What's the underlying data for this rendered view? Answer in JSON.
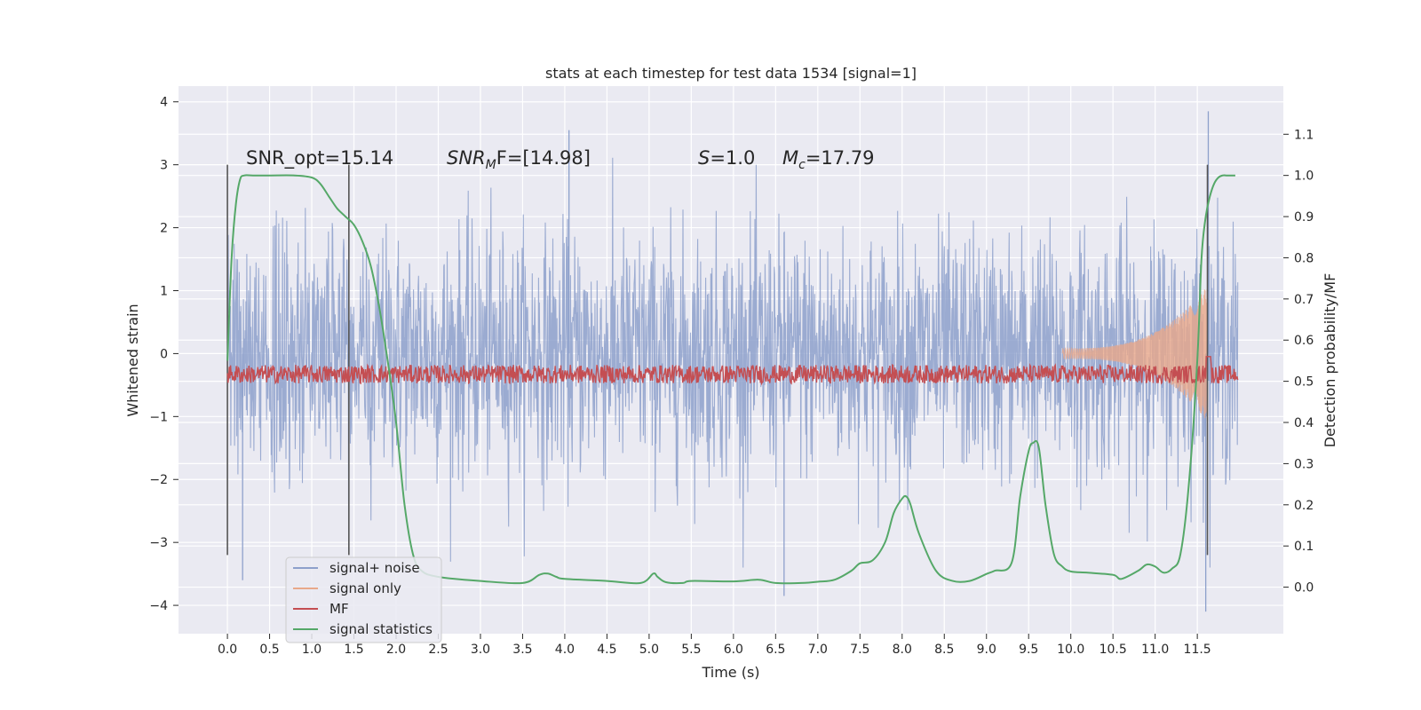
{
  "chart_data": {
    "type": "line",
    "title": "stats at each timestep for test data 1534 [signal=1]",
    "xlabel": "Time (s)",
    "ylabel": "Whitened strain",
    "y2label": "Detection probability/MF",
    "xlim": [
      -0.58,
      12.52
    ],
    "ylim": [
      -4.45,
      4.25
    ],
    "y2lim": [
      -0.113,
      1.217
    ],
    "grid": true,
    "x_ticks": [
      0.0,
      0.5,
      1.0,
      1.5,
      2.0,
      2.5,
      3.0,
      3.5,
      4.0,
      4.5,
      5.0,
      5.5,
      6.0,
      6.5,
      7.0,
      7.5,
      8.0,
      8.5,
      9.0,
      9.5,
      10.0,
      10.5,
      11.0,
      11.5
    ],
    "x_tick_labels": [
      "0.0",
      "0.5",
      "1.0",
      "1.5",
      "2.0",
      "2.5",
      "3.0",
      "3.5",
      "4.0",
      "4.5",
      "5.0",
      "5.5",
      "6.0",
      "6.5",
      "7.0",
      "7.5",
      "8.0",
      "8.5",
      "9.0",
      "9.5",
      "10.0",
      "10.5",
      "11.0",
      "11.5"
    ],
    "y_ticks": [
      -4,
      -3,
      -2,
      -1,
      0,
      1,
      2,
      3,
      4
    ],
    "y_tick_labels": [
      "−4",
      "−3",
      "−2",
      "−1",
      "0",
      "1",
      "2",
      "3",
      "4"
    ],
    "y2_ticks": [
      0.0,
      0.1,
      0.2,
      0.3,
      0.4,
      0.5,
      0.6,
      0.7,
      0.8,
      0.9,
      1.0,
      1.1
    ],
    "y2_tick_labels": [
      "0.0",
      "0.1",
      "0.2",
      "0.3",
      "0.4",
      "0.5",
      "0.6",
      "0.7",
      "0.8",
      "0.9",
      "1.0",
      "1.1"
    ],
    "annotations": {
      "snr_opt": "SNR_opt=15.14",
      "snr_mf_label": "SNR",
      "snr_mf_sub": "M",
      "snr_mf_rest": "F=[14.98]",
      "s_label": "S",
      "s_value": "=1.0",
      "mc_label": "M",
      "mc_sub": "c",
      "mc_value": "=17.79"
    },
    "vertical_markers": [
      0.0,
      1.44,
      11.62
    ],
    "vertical_marker_range": [
      -3.2,
      3.0
    ],
    "legend": {
      "placement": "lower-left",
      "entries": [
        "signal+ noise",
        "signal only",
        "MF",
        "signal statistics"
      ]
    },
    "colors": {
      "noise": "#8da0cb",
      "signal": "#e8a88a",
      "mf": "#c44e52",
      "stats": "#55a868",
      "axes_bg": "#eaeaf2",
      "marker": "#555555"
    },
    "series": [
      {
        "name": "signal+ noise",
        "axis": "left",
        "t_start": 0.0,
        "t_end": 11.98,
        "typical_amplitude": 1.8,
        "note_peaks": [
          [
            0.18,
            -3.6
          ],
          [
            4.05,
            3.55
          ],
          [
            6.6,
            -3.85
          ],
          [
            11.6,
            -4.1
          ],
          [
            11.63,
            3.85
          ]
        ]
      },
      {
        "name": "signal only",
        "axis": "left",
        "chirp_start": 9.9,
        "chirp_end": 11.62,
        "peak_amplitude": 1.0
      },
      {
        "name": "MF",
        "axis": "right",
        "baseline": 0.515,
        "noise_range": [
          0.5,
          0.545
        ],
        "spike_at": 11.63,
        "spike_value": 0.56
      },
      {
        "name": "signal statistics",
        "axis": "right",
        "x": [
          0.0,
          0.05,
          0.1,
          0.15,
          0.2,
          0.3,
          0.5,
          0.8,
          1.0,
          1.1,
          1.2,
          1.3,
          1.4,
          1.5,
          1.6,
          1.7,
          1.8,
          1.9,
          2.0,
          2.1,
          2.2,
          2.3,
          2.5,
          3.0,
          3.5,
          3.7,
          3.8,
          3.9,
          4.0,
          4.5,
          4.9,
          5.05,
          5.1,
          5.2,
          5.4,
          5.5,
          6.0,
          6.3,
          6.5,
          6.8,
          7.0,
          7.2,
          7.4,
          7.5,
          7.65,
          7.8,
          7.9,
          8.0,
          8.05,
          8.1,
          8.2,
          8.4,
          8.6,
          8.8,
          9.0,
          9.1,
          9.3,
          9.4,
          9.5,
          9.55,
          9.62,
          9.7,
          9.8,
          9.9,
          10.0,
          10.2,
          10.5,
          10.6,
          10.8,
          10.9,
          11.0,
          11.1,
          11.2,
          11.3,
          11.4,
          11.5,
          11.55,
          11.6,
          11.65,
          11.7,
          11.75,
          11.8,
          11.85,
          11.9,
          11.95
        ],
        "y": [
          0.55,
          0.8,
          0.93,
          0.99,
          1.0,
          1.0,
          1.0,
          1.0,
          0.995,
          0.98,
          0.95,
          0.92,
          0.9,
          0.88,
          0.84,
          0.78,
          0.68,
          0.55,
          0.4,
          0.2,
          0.08,
          0.04,
          0.025,
          0.015,
          0.01,
          0.03,
          0.033,
          0.025,
          0.02,
          0.015,
          0.01,
          0.033,
          0.025,
          0.012,
          0.01,
          0.015,
          0.014,
          0.018,
          0.01,
          0.01,
          0.013,
          0.018,
          0.04,
          0.058,
          0.065,
          0.11,
          0.18,
          0.215,
          0.22,
          0.2,
          0.13,
          0.04,
          0.015,
          0.015,
          0.032,
          0.04,
          0.06,
          0.22,
          0.33,
          0.35,
          0.34,
          0.2,
          0.08,
          0.05,
          0.038,
          0.035,
          0.03,
          0.02,
          0.04,
          0.055,
          0.05,
          0.035,
          0.045,
          0.08,
          0.25,
          0.55,
          0.8,
          0.9,
          0.95,
          0.98,
          0.995,
          1.0,
          1.0,
          1.0,
          1.0
        ]
      }
    ]
  }
}
